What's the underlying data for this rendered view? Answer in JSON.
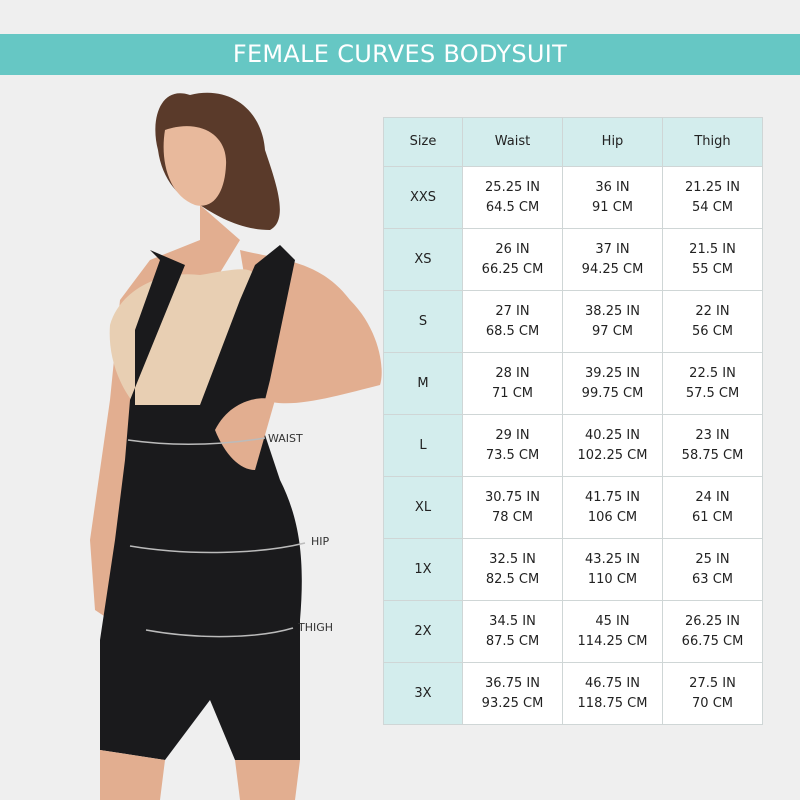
{
  "title": "FEMALE CURVES BODYSUIT",
  "measure_labels": {
    "waist": "WAIST",
    "hip": "HIP",
    "thigh": "THIGH"
  },
  "colors": {
    "banner": "#66c7c4",
    "header_cell": "#d3eded",
    "background": "#efefef",
    "bodysuit": "#1a1a1c"
  },
  "table": {
    "headers": [
      "Size",
      "Waist",
      "Hip",
      "Thigh"
    ],
    "rows": [
      {
        "size": "XXS",
        "waist": [
          "25.25 IN",
          "64.5 CM"
        ],
        "hip": [
          "36 IN",
          "91 CM"
        ],
        "thigh": [
          "21.25 IN",
          "54 CM"
        ]
      },
      {
        "size": "XS",
        "waist": [
          "26 IN",
          "66.25 CM"
        ],
        "hip": [
          "37 IN",
          "94.25 CM"
        ],
        "thigh": [
          "21.5 IN",
          "55 CM"
        ]
      },
      {
        "size": "S",
        "waist": [
          "27 IN",
          "68.5 CM"
        ],
        "hip": [
          "38.25 IN",
          "97 CM"
        ],
        "thigh": [
          "22 IN",
          "56 CM"
        ]
      },
      {
        "size": "M",
        "waist": [
          "28 IN",
          "71 CM"
        ],
        "hip": [
          "39.25 IN",
          "99.75 CM"
        ],
        "thigh": [
          "22.5 IN",
          "57.5 CM"
        ]
      },
      {
        "size": "L",
        "waist": [
          "29 IN",
          "73.5 CM"
        ],
        "hip": [
          "40.25 IN",
          "102.25 CM"
        ],
        "thigh": [
          "23 IN",
          "58.75 CM"
        ]
      },
      {
        "size": "XL",
        "waist": [
          "30.75 IN",
          "78 CM"
        ],
        "hip": [
          "41.75 IN",
          "106 CM"
        ],
        "thigh": [
          "24 IN",
          "61 CM"
        ]
      },
      {
        "size": "1X",
        "waist": [
          "32.5 IN",
          "82.5 CM"
        ],
        "hip": [
          "43.25 IN",
          "110 CM"
        ],
        "thigh": [
          "25 IN",
          "63 CM"
        ]
      },
      {
        "size": "2X",
        "waist": [
          "34.5 IN",
          "87.5 CM"
        ],
        "hip": [
          "45 IN",
          "114.25 CM"
        ],
        "thigh": [
          "26.25 IN",
          "66.75 CM"
        ]
      },
      {
        "size": "3X",
        "waist": [
          "36.75 IN",
          "93.25 CM"
        ],
        "hip": [
          "46.75 IN",
          "118.75 CM"
        ],
        "thigh": [
          "27.5 IN",
          "70 CM"
        ]
      }
    ]
  }
}
